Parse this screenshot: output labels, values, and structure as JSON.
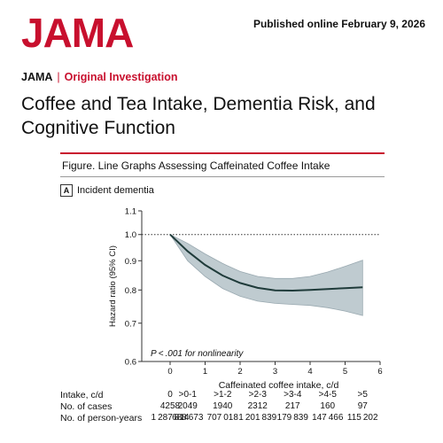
{
  "header": {
    "logo": "JAMA",
    "published": "Published online February 9, 2026",
    "journal": "JAMA",
    "separator": "|",
    "section": "Original Investigation",
    "title": "Coffee and Tea Intake, Dementia Risk, and Cognitive Function"
  },
  "figure": {
    "caption": "Figure. Line Graphs Assessing Caffeinated Coffee Intake",
    "panel_letter": "A",
    "panel_title": "Incident dementia"
  },
  "chart_data": {
    "type": "line",
    "title": "Incident dementia",
    "xlabel": "Caffeinated coffee intake, c/d",
    "ylabel": "Hazard ratio (95% CI)",
    "ylog": true,
    "xlim": [
      -1,
      6
    ],
    "ylim": [
      0.6,
      1.1
    ],
    "xticks": [
      0,
      1,
      2,
      3,
      4,
      5,
      6
    ],
    "yticks": [
      0.6,
      0.7,
      0.8,
      0.9,
      1.0,
      1.1
    ],
    "ytick_labels": [
      "0.6",
      "0.7",
      "0.8",
      "0.9",
      "1.0",
      "1.1"
    ],
    "reference_line": 1.0,
    "annotation": "P < .001 for nonlinearity",
    "series": [
      {
        "x": [
          0,
          0.5,
          1,
          1.5,
          2,
          2.5,
          3,
          3.5,
          4,
          4.5,
          5,
          5.5
        ],
        "y": [
          1.0,
          0.935,
          0.885,
          0.848,
          0.823,
          0.807,
          0.799,
          0.798,
          0.8,
          0.803,
          0.806,
          0.809
        ],
        "lower": [
          1.0,
          0.9,
          0.845,
          0.805,
          0.78,
          0.765,
          0.758,
          0.755,
          0.752,
          0.745,
          0.735,
          0.722
        ],
        "upper": [
          1.0,
          0.965,
          0.925,
          0.89,
          0.862,
          0.845,
          0.838,
          0.838,
          0.845,
          0.86,
          0.88,
          0.902
        ]
      }
    ],
    "line_color": "#1f3b3a",
    "band_color": "#b9c6cc"
  },
  "table": {
    "row_labels": [
      "Intake, c/d",
      "No. of cases",
      "No. of person-years"
    ],
    "columns": [
      {
        "x": 0,
        "intake": "0",
        "cases": "4258",
        "person_years": "1287814"
      },
      {
        "x": 0.5,
        "intake": ">0-1",
        "cases": "2049",
        "person_years": "688673"
      },
      {
        "x": 1.5,
        "intake": ">1-2",
        "cases": "1940",
        "person_years": "707018"
      },
      {
        "x": 2.5,
        "intake": ">2-3",
        "cases": "2312",
        "person_years": "1201839"
      },
      {
        "x": 3.5,
        "intake": ">3-4",
        "cases": "217",
        "person_years": "179839"
      },
      {
        "x": 4.5,
        "intake": ">4-5",
        "cases": "160",
        "person_years": "147466"
      },
      {
        "x": 5.5,
        "intake": ">5",
        "cases": "97",
        "person_years": "115202"
      }
    ]
  }
}
